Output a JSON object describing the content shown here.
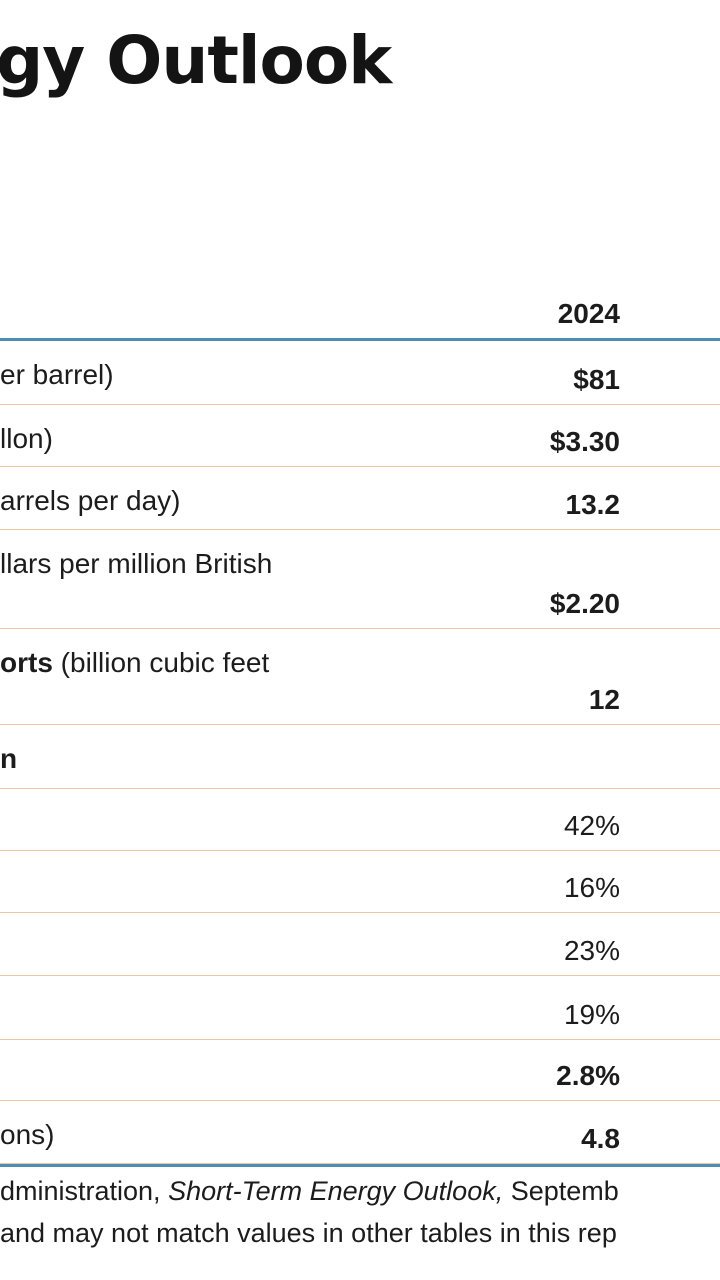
{
  "title": "gy Outlook",
  "table": {
    "year_header": "2024",
    "rows": [
      {
        "label": "er barrel)",
        "value": "$81",
        "bold": true
      },
      {
        "label": "llon)",
        "value": "$3.30",
        "bold": true
      },
      {
        "label": "arrels per day)",
        "value": "13.2",
        "bold": true
      },
      {
        "label": "llars per million British",
        "value": "$2.20",
        "bold": true
      },
      {
        "label_bold": "orts",
        "label": " (billion cubic feet",
        "value": "12",
        "bold": true
      },
      {
        "label_bold": "n",
        "label": "",
        "value": "",
        "bold": false
      },
      {
        "label": "",
        "value": "42%",
        "bold": false
      },
      {
        "label": "",
        "value": "16%",
        "bold": false
      },
      {
        "label": "",
        "value": "23%",
        "bold": false
      },
      {
        "label": "",
        "value": "19%",
        "bold": false
      },
      {
        "label": "",
        "value": "2.8%",
        "bold": true
      },
      {
        "label": "ons)",
        "value": "4.8",
        "bold": true
      }
    ]
  },
  "footnotes": {
    "line1_prefix": "dministration, ",
    "line1_italic": "Short-Term Energy Outlook,",
    "line1_suffix": " Septemb",
    "line2": "and may not match values in other tables in this rep"
  }
}
